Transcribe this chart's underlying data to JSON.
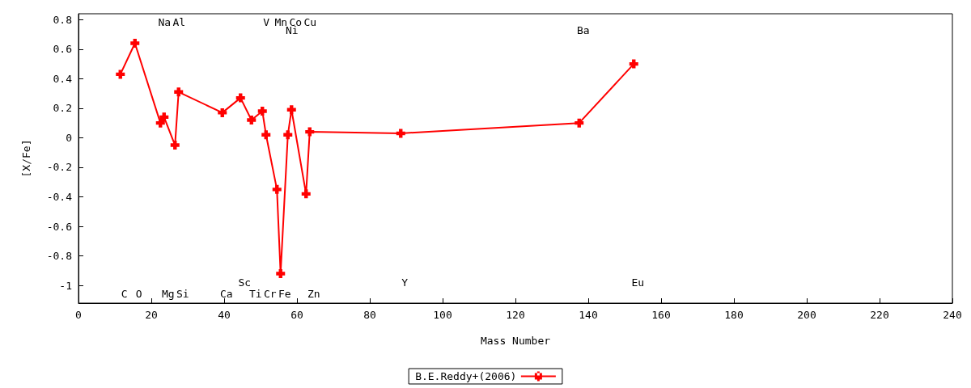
{
  "chart_data": {
    "type": "line",
    "xlabel": "Mass Number",
    "ylabel": "[X/Fe]",
    "xlim": [
      0,
      240
    ],
    "xticks": [
      0,
      20,
      40,
      60,
      80,
      100,
      120,
      140,
      160,
      180,
      200,
      220,
      240
    ],
    "ylim": [
      -1.12,
      0.84
    ],
    "yticks": [
      -1,
      -0.8,
      -0.6,
      -0.4,
      -0.2,
      0,
      0.2,
      0.4,
      0.6,
      0.8
    ],
    "grid": false,
    "legend": "bottom",
    "marker": "cross",
    "line_style": "solid",
    "series": [
      {
        "name": "B.E.Reddy+(2006)",
        "color": "#ff0000",
        "x": [
          11.5,
          15.5,
          22.5,
          23.5,
          26.5,
          27.5,
          39.5,
          44.5,
          47.5,
          50.5,
          51.5,
          54.5,
          55.5,
          57.5,
          58.5,
          62.5,
          63.5,
          88.5,
          137.5,
          152.5
        ],
        "values": [
          0.43,
          0.64,
          0.1,
          0.14,
          -0.05,
          0.31,
          0.17,
          0.27,
          0.12,
          0.18,
          0.02,
          -0.35,
          -0.92,
          0.02,
          0.19,
          -0.38,
          0.04,
          0.03,
          0.1,
          0.5
        ]
      }
    ],
    "annotations": [
      "C",
      "O",
      "Na",
      "Mg",
      "Al",
      "Si",
      "Ca",
      "Sc",
      "Ti",
      "V",
      "Cr",
      "Mn",
      "Fe",
      "Ni",
      "Co",
      "Cu",
      "Zn",
      "Y",
      "Ba",
      "Eu"
    ]
  }
}
